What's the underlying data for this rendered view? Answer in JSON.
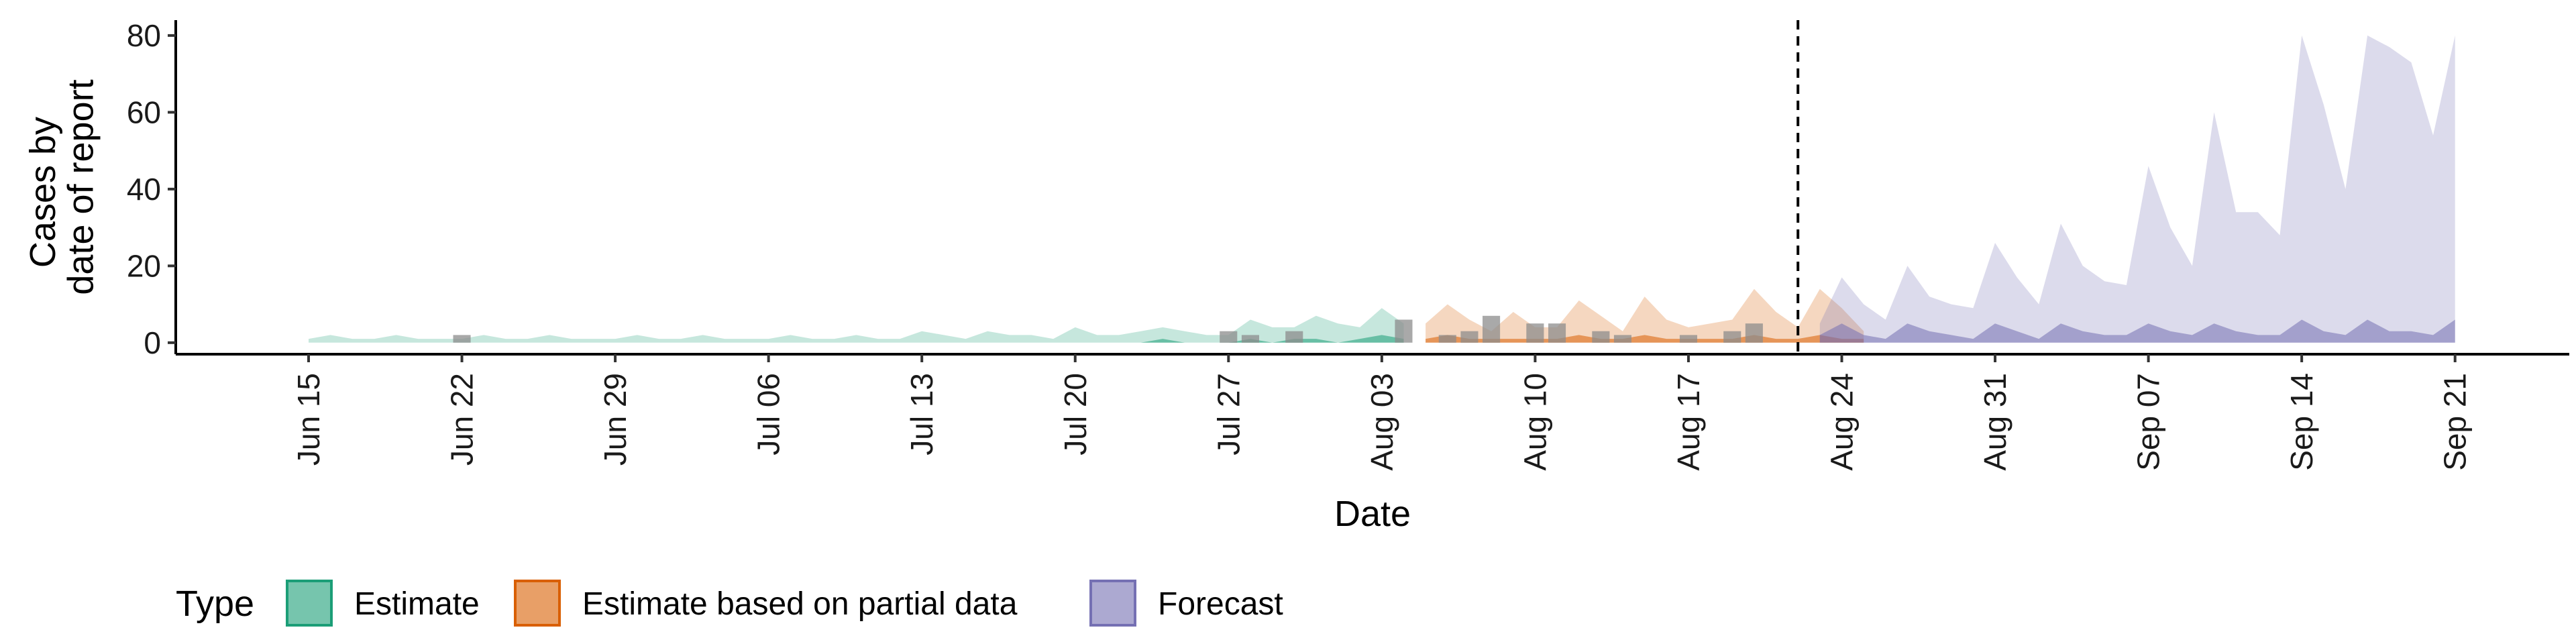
{
  "chart_data": {
    "type": "area",
    "xlabel": "Date",
    "ylabel_lines": [
      "Cases by",
      "date of report"
    ],
    "ylim": [
      -3,
      84
    ],
    "y_ticks": [
      0,
      20,
      40,
      60,
      80
    ],
    "x_ticks": [
      {
        "label": "Jun 15",
        "day": 0
      },
      {
        "label": "Jun 22",
        "day": 7
      },
      {
        "label": "Jun 29",
        "day": 14
      },
      {
        "label": "Jul 06",
        "day": 21
      },
      {
        "label": "Jul 13",
        "day": 28
      },
      {
        "label": "Jul 20",
        "day": 35
      },
      {
        "label": "Jul 27",
        "day": 42
      },
      {
        "label": "Aug 03",
        "day": 49
      },
      {
        "label": "Aug 10",
        "day": 56
      },
      {
        "label": "Aug 17",
        "day": 63
      },
      {
        "label": "Aug 24",
        "day": 70
      },
      {
        "label": "Aug 31",
        "day": 77
      },
      {
        "label": "Sep 07",
        "day": 84
      },
      {
        "label": "Sep 14",
        "day": 91
      },
      {
        "label": "Sep 21",
        "day": 98
      }
    ],
    "forecast_start_day": 68,
    "legend": {
      "title": "Type",
      "items": [
        {
          "key": "estimate",
          "label": "Estimate"
        },
        {
          "key": "partial",
          "label": "Estimate based on partial data"
        },
        {
          "key": "forecast",
          "label": "Forecast"
        }
      ]
    },
    "colors": {
      "estimate": "#1b9e77",
      "partial": "#d95f02",
      "forecast": "#7570b3",
      "observed": "#8c8c8c"
    },
    "series": [
      {
        "key": "estimate",
        "start_day": 0,
        "outer_upper": [
          1,
          2,
          1,
          1,
          2,
          1,
          1,
          1,
          2,
          1,
          1,
          2,
          1,
          1,
          1,
          2,
          1,
          1,
          2,
          1,
          1,
          1,
          2,
          1,
          1,
          2,
          1,
          1,
          3,
          2,
          1,
          3,
          2,
          2,
          1,
          4,
          2,
          2,
          3,
          4,
          3,
          2,
          2,
          6,
          4,
          4,
          7,
          5,
          4,
          9,
          5
        ],
        "inner_upper": [
          0,
          0,
          0,
          0,
          0,
          0,
          0,
          0,
          0,
          0,
          0,
          0,
          0,
          0,
          0,
          0,
          0,
          0,
          0,
          0,
          0,
          0,
          0,
          0,
          0,
          0,
          0,
          0,
          0,
          0,
          0,
          0,
          0,
          0,
          0,
          0,
          0,
          0,
          0,
          1,
          0,
          0,
          0,
          1,
          0,
          1,
          1,
          0,
          1,
          2,
          1
        ]
      },
      {
        "key": "partial",
        "start_day": 51,
        "outer_upper": [
          5,
          10,
          6,
          3,
          8,
          4,
          4,
          11,
          7,
          3,
          12,
          6,
          4,
          5,
          6,
          14,
          8,
          4,
          14,
          9,
          3
        ],
        "inner_upper": [
          1,
          2,
          1,
          1,
          1,
          1,
          1,
          2,
          1,
          1,
          2,
          1,
          1,
          1,
          1,
          2,
          1,
          1,
          2,
          1,
          1
        ]
      },
      {
        "key": "forecast",
        "start_day": 69,
        "outer_upper": [
          5,
          17,
          10,
          6,
          20,
          12,
          10,
          9,
          26,
          17,
          10,
          31,
          20,
          16,
          15,
          46,
          30,
          20,
          60,
          34,
          34,
          28,
          80,
          62,
          40,
          80,
          77,
          73,
          54,
          80
        ],
        "inner_upper": [
          2,
          5,
          2,
          1,
          5,
          3,
          2,
          1,
          5,
          3,
          1,
          5,
          3,
          2,
          2,
          5,
          3,
          2,
          5,
          3,
          2,
          2,
          6,
          3,
          2,
          6,
          3,
          3,
          2,
          6
        ]
      }
    ],
    "observed_cases": [
      {
        "day": 7,
        "value": 2
      },
      {
        "day": 42,
        "value": 3
      },
      {
        "day": 43,
        "value": 2
      },
      {
        "day": 45,
        "value": 3
      },
      {
        "day": 50,
        "value": 6
      },
      {
        "day": 52,
        "value": 2
      },
      {
        "day": 53,
        "value": 3
      },
      {
        "day": 54,
        "value": 7
      },
      {
        "day": 56,
        "value": 5
      },
      {
        "day": 57,
        "value": 5
      },
      {
        "day": 59,
        "value": 3
      },
      {
        "day": 60,
        "value": 2
      },
      {
        "day": 63,
        "value": 2
      },
      {
        "day": 65,
        "value": 3
      },
      {
        "day": 66,
        "value": 5
      }
    ]
  }
}
